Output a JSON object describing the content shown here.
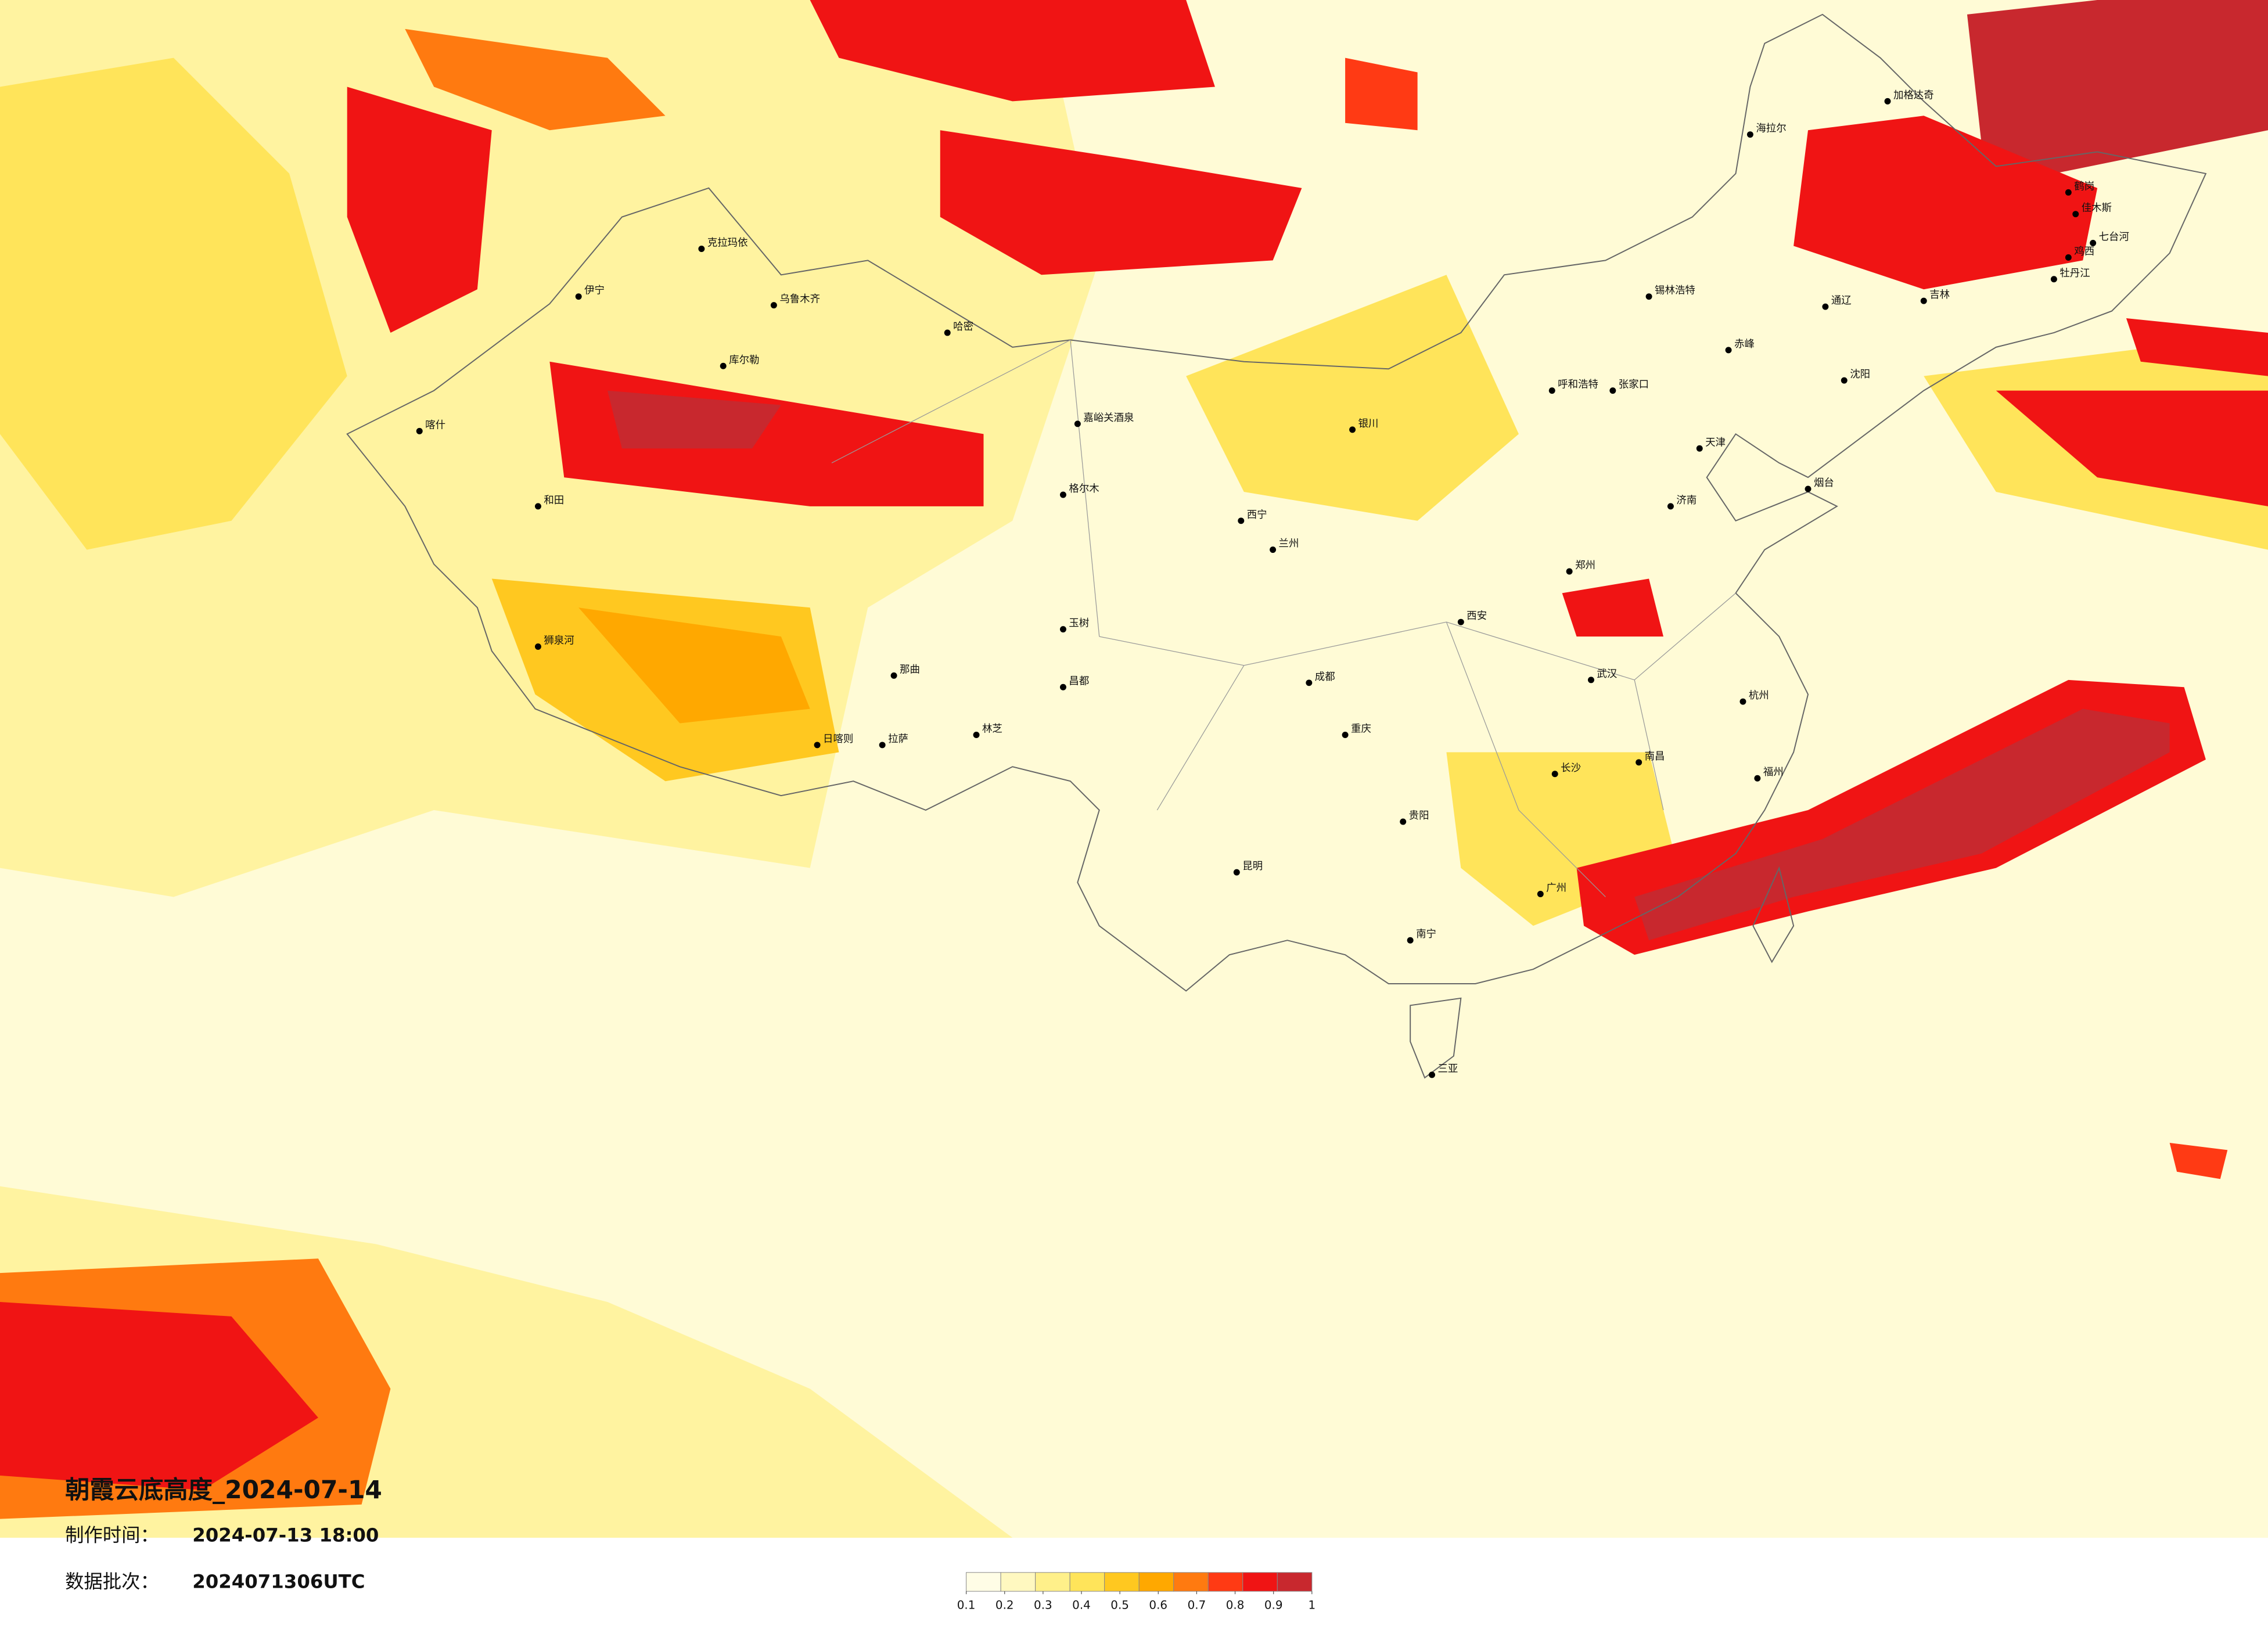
{
  "header": {
    "title": "朝霞云底高度_2024-07-14",
    "time_label": "制作时间：",
    "time": "2024-07-13 18:00",
    "batch_label": "数据批次：",
    "batch": "2024071306UTC"
  },
  "legend": {
    "colors": [
      "#fffde6",
      "#fff8c0",
      "#fff08a",
      "#ffe45a",
      "#ffc820",
      "#ffa800",
      "#ff7a10",
      "#ff3a14",
      "#f01414",
      "#c8282e"
    ],
    "ticks": [
      0.1,
      0.2,
      0.3,
      0.4,
      0.5,
      0.6,
      0.7,
      0.8,
      0.9,
      1
    ]
  },
  "cities": [
    "加格达奇",
    "海拉尔",
    "鹤岗",
    "佳木斯",
    "七台河",
    "鸡西",
    "牡丹江",
    "吉林",
    "通辽",
    "锡林浩特",
    "赤峰",
    "呼和浩特",
    "张家口",
    "乌鲁木齐",
    "克拉玛依",
    "伊宁",
    "喀什",
    "和田",
    "库尔勒",
    "哈密",
    "嘉峪关酒泉",
    "格尔木",
    "西宁",
    "兰州",
    "银川",
    "西安",
    "成都",
    "重庆",
    "贵阳",
    "昆明",
    "南宁",
    "三亚",
    "广州",
    "福州",
    "杭州",
    "南昌",
    "长沙",
    "武汉",
    "郑州",
    "济南",
    "天津",
    "拉萨",
    "日喀则",
    "林芝",
    "那曲",
    "昌都",
    "玉树",
    "狮泉河",
    "烟台",
    "沈阳"
  ]
}
